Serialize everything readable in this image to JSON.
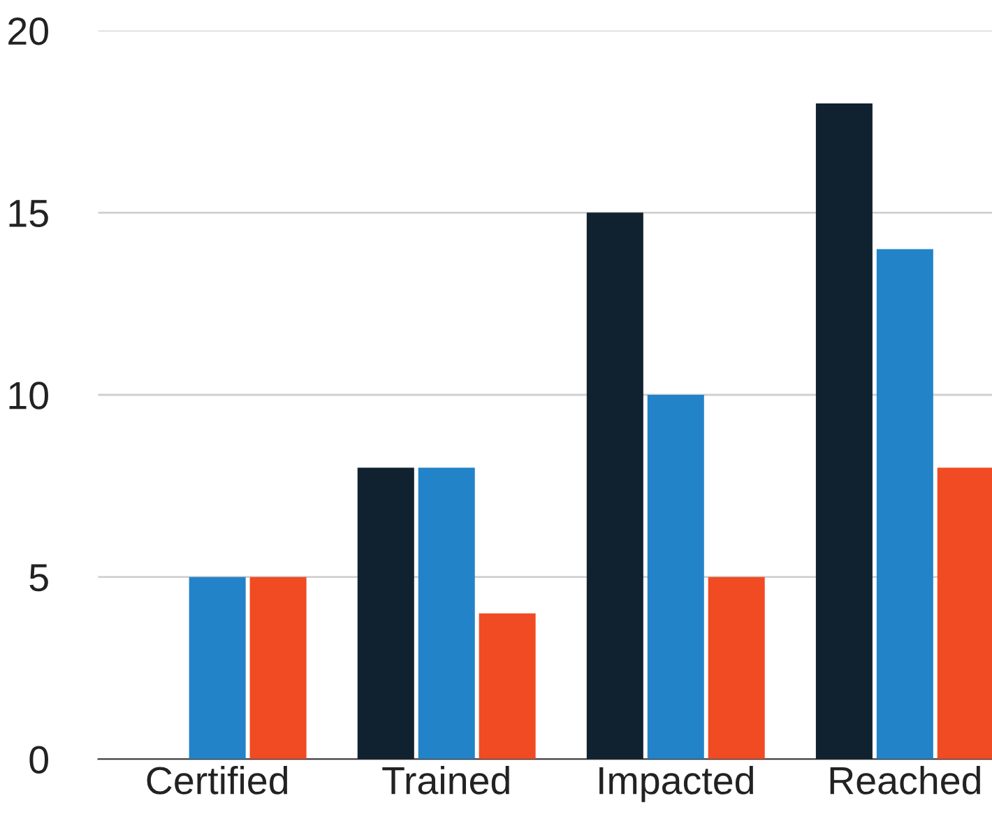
{
  "chart_data": {
    "type": "bar",
    "categories": [
      "Certified",
      "Trained",
      "Impacted",
      "Reached"
    ],
    "series": [
      {
        "color": "#10222f",
        "values": [
          0,
          8,
          15,
          18
        ]
      },
      {
        "color": "#2383c8",
        "values": [
          5,
          8,
          10,
          14
        ]
      },
      {
        "color": "#f04b23",
        "values": [
          5,
          4,
          5,
          8
        ]
      }
    ],
    "ylim": [
      0,
      20
    ],
    "yticks": [
      0,
      5,
      10,
      15,
      20
    ],
    "grid": "y"
  }
}
